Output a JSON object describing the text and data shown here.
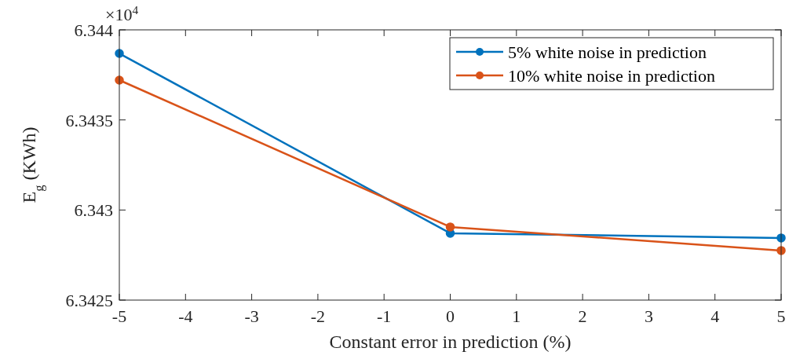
{
  "chart_data": {
    "type": "line",
    "xlabel": "Constant error in prediction (%)",
    "ylabel": "E$_{g}$ (KWh)",
    "annotations": [
      "×10$^{4}$"
    ],
    "x": [
      -5,
      0,
      5
    ],
    "series": [
      {
        "name": "5% white noise in prediction",
        "color": "#0072bd",
        "values": [
          6.343869,
          6.342871,
          6.342845
        ]
      },
      {
        "name": "10% white noise in prediction",
        "color": "#d95319",
        "values": [
          6.343721,
          6.342906,
          6.342775
        ]
      }
    ],
    "xlim": [
      -5,
      5
    ],
    "xticks": [
      -5,
      -4,
      -3,
      -2,
      -1,
      0,
      1,
      2,
      3,
      4,
      5
    ],
    "ylim": [
      6.3425,
      6.344
    ],
    "yticks": [
      6.3425,
      6.343,
      6.3435,
      6.344
    ],
    "grid": false,
    "legend": "top right",
    "marker": "circle",
    "line_style": "solid"
  }
}
